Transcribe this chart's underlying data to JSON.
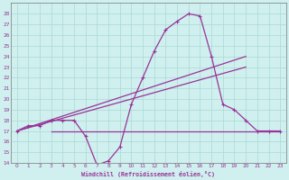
{
  "xlabel": "Windchill (Refroidissement éolien,°C)",
  "xlim": [
    -0.5,
    23.5
  ],
  "ylim": [
    14,
    29
  ],
  "xticks": [
    0,
    1,
    2,
    3,
    4,
    5,
    6,
    7,
    8,
    9,
    10,
    11,
    12,
    13,
    14,
    15,
    16,
    17,
    18,
    19,
    20,
    21,
    22,
    23
  ],
  "yticks": [
    14,
    15,
    16,
    17,
    18,
    19,
    20,
    21,
    22,
    23,
    24,
    25,
    26,
    27,
    28
  ],
  "bg_color": "#cff0ee",
  "grid_color": "#aad8d4",
  "line_color": "#993399",
  "series_main": {
    "x": [
      0,
      1,
      2,
      3,
      4,
      5,
      6,
      7,
      8,
      9,
      10,
      11,
      12,
      13,
      14,
      15,
      16,
      17,
      18,
      19,
      20,
      21,
      22,
      23
    ],
    "y": [
      17.0,
      17.5,
      17.5,
      18.0,
      18.0,
      18.0,
      16.5,
      13.8,
      14.2,
      15.5,
      19.5,
      22.0,
      24.5,
      26.5,
      27.3,
      28.0,
      27.8,
      24.0,
      19.5,
      19.0,
      18.0,
      17.0,
      17.0,
      17.0
    ]
  },
  "series_flat": {
    "x": [
      3,
      23
    ],
    "y": [
      17.0,
      17.0
    ]
  },
  "series_diag1": {
    "x": [
      0,
      20
    ],
    "y": [
      17.0,
      24.0
    ]
  },
  "series_diag2": {
    "x": [
      0,
      20
    ],
    "y": [
      17.0,
      23.0
    ]
  }
}
